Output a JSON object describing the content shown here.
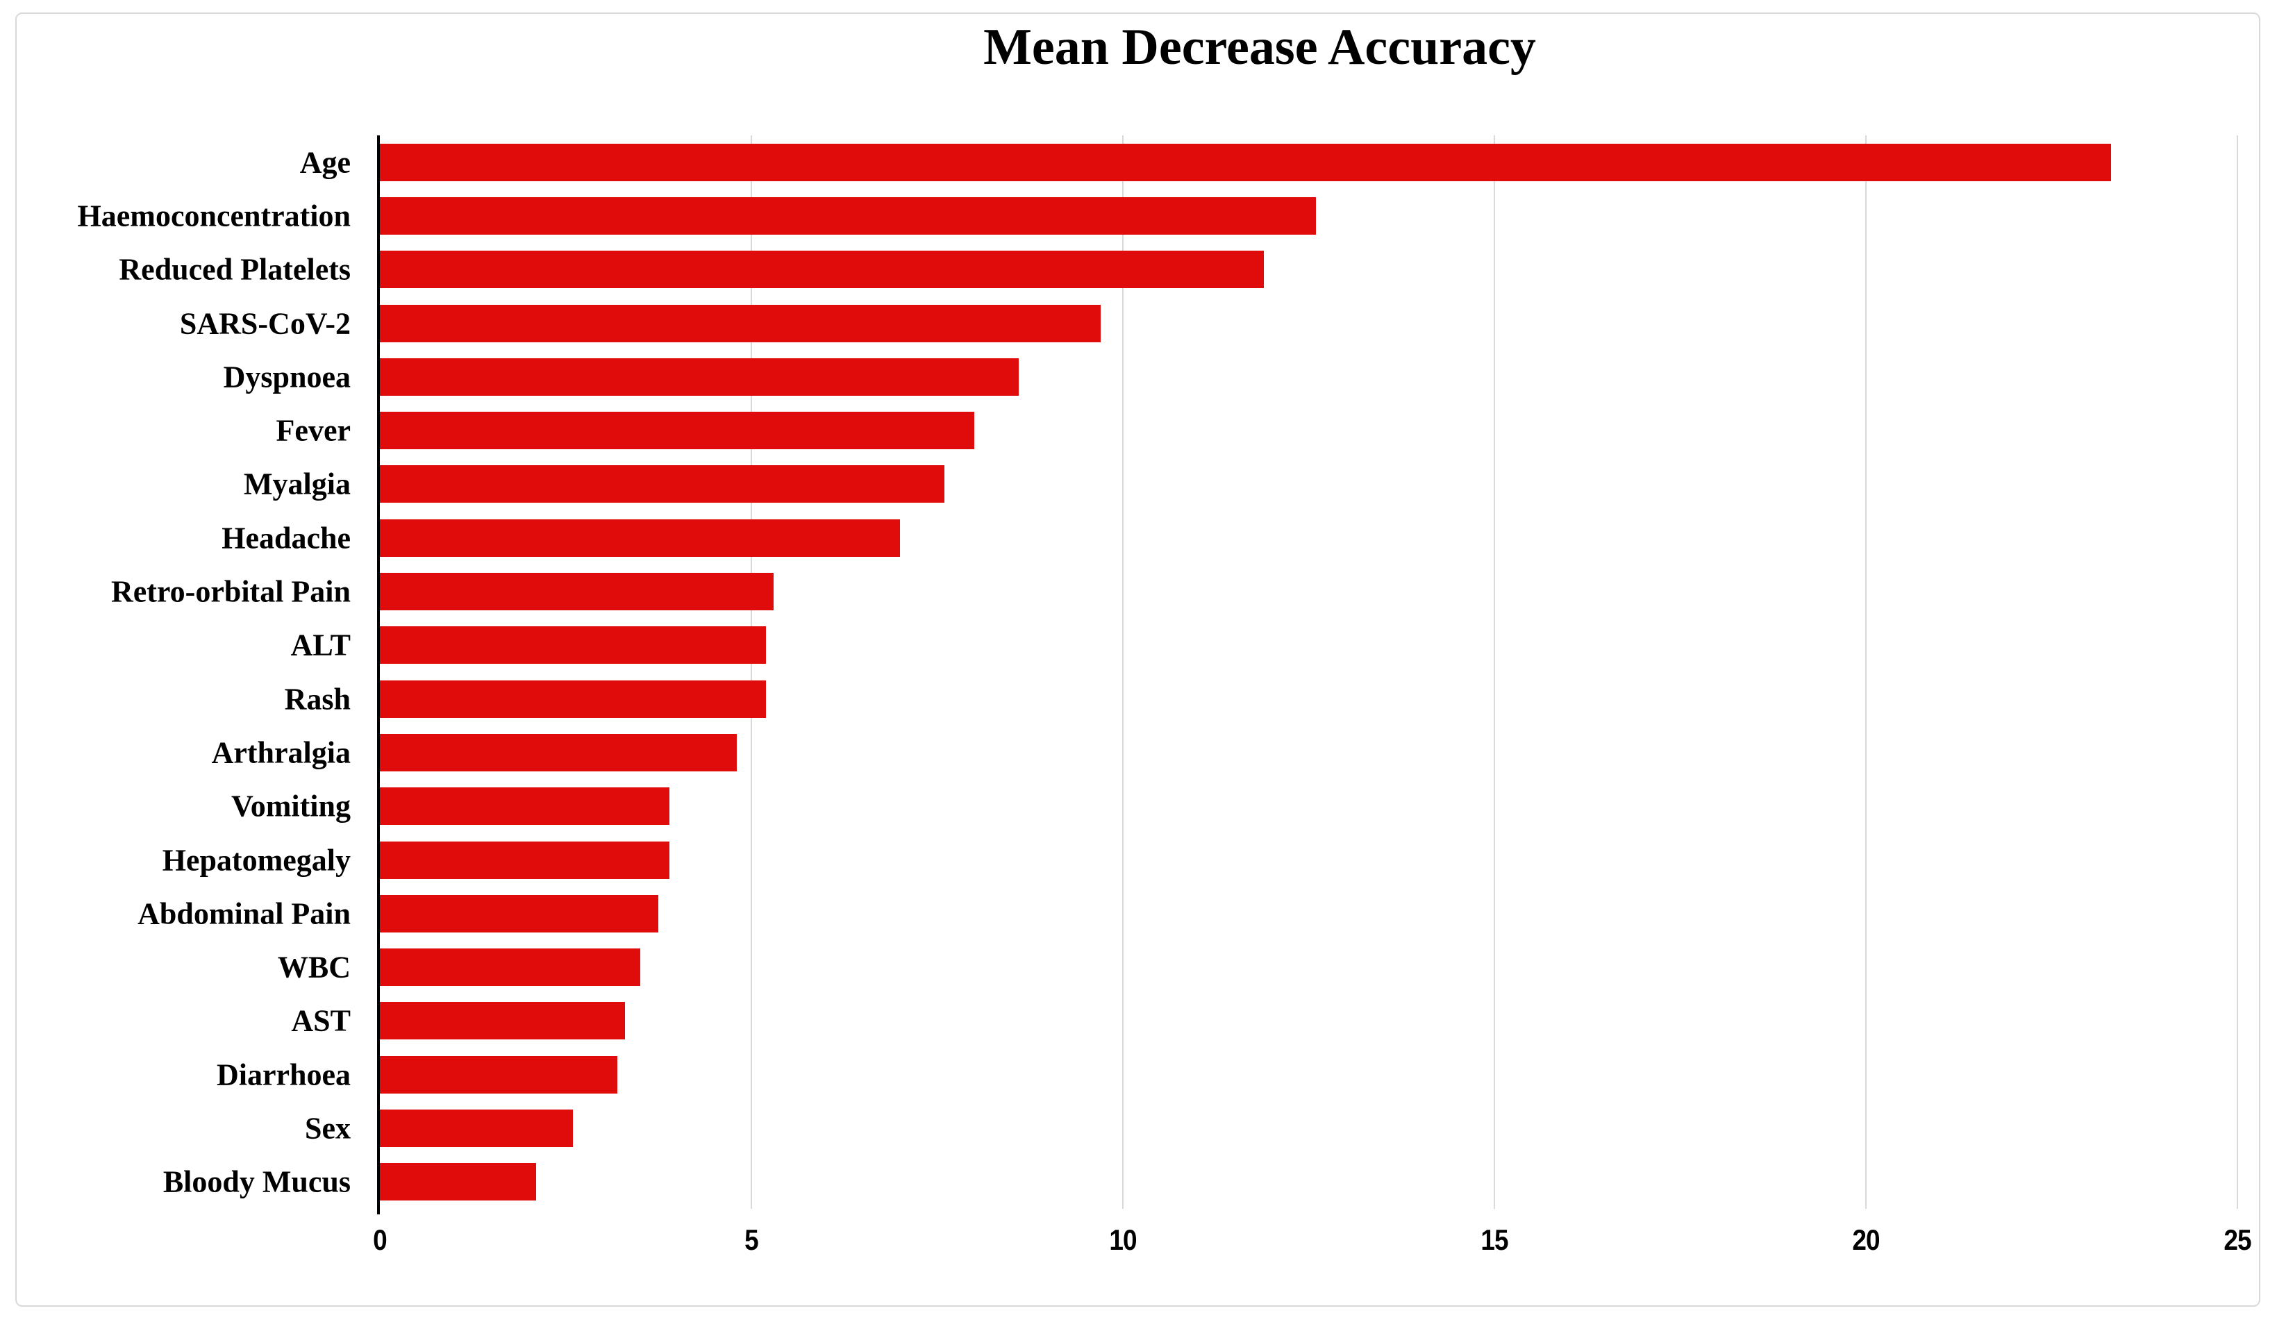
{
  "figure": {
    "background_color": "#ffffff",
    "border_color": "#d9d9d9"
  },
  "chart_data": {
    "type": "bar",
    "orientation": "horizontal",
    "title": "Mean Decrease Accuracy",
    "categories": [
      "Age",
      "Haemoconcentration",
      "Reduced Platelets",
      "SARS-CoV-2",
      "Dyspnoea",
      "Fever",
      "Myalgia",
      "Headache",
      "Retro-orbital Pain",
      "ALT",
      "Rash",
      "Arthralgia",
      "Vomiting",
      "Hepatomegaly",
      "Abdominal Pain",
      "WBC",
      "AST",
      "Diarrhoea",
      "Sex",
      "Bloody Mucus"
    ],
    "values": [
      23.3,
      12.6,
      11.9,
      9.7,
      8.6,
      8.0,
      7.6,
      7.0,
      5.3,
      5.2,
      5.2,
      4.8,
      3.9,
      3.9,
      3.75,
      3.5,
      3.3,
      3.2,
      2.6,
      2.1
    ],
    "xlabel": "",
    "ylabel": "",
    "xlim": [
      0,
      25
    ],
    "xticks": [
      0,
      5,
      10,
      15,
      20,
      25
    ],
    "xtick_labels": [
      "0",
      "5",
      "10",
      "15",
      "20",
      "25"
    ],
    "bar_color": "#e00b0b",
    "gridline_color": "#d9d9d9",
    "axis_color": "#000000",
    "grid": "vertical",
    "legend": "none"
  }
}
